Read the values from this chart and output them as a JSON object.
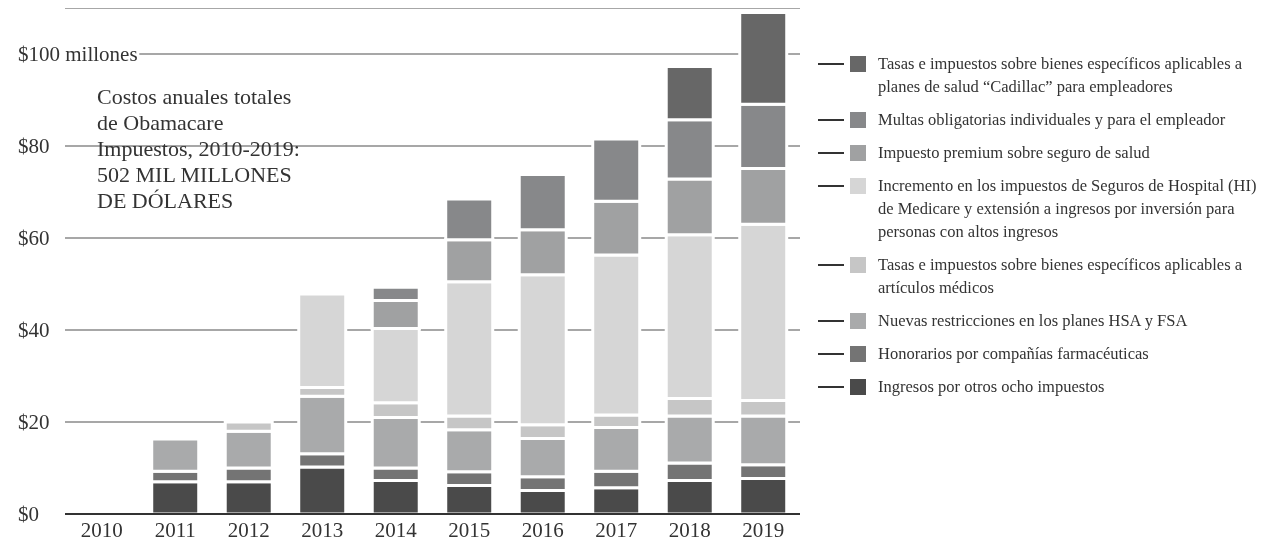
{
  "chart_data": {
    "type": "bar",
    "title": "Costos anuales totales\nde Obamacare\nImpuestos, 2010-2019:\n502 MIL MILLONES\nDE DÓLARES",
    "categories": [
      "2010",
      "2011",
      "2012",
      "2013",
      "2014",
      "2015",
      "2016",
      "2017",
      "2018",
      "2019"
    ],
    "stacked": true,
    "grid": "y",
    "legend": "right",
    "ylim": [
      0,
      110
    ],
    "yticks": [
      {
        "value": 0,
        "label": "$0"
      },
      {
        "value": 20,
        "label": "$20"
      },
      {
        "value": 40,
        "label": "$40"
      },
      {
        "value": 60,
        "label": "$60"
      },
      {
        "value": 80,
        "label": "$80"
      },
      {
        "value": 100,
        "label": "$100 millones"
      }
    ],
    "series": [
      {
        "name": "Ingresos por otros ocho impuestos",
        "color": "#4a4a4a",
        "values": [
          0,
          7.0,
          7.0,
          10.2,
          7.3,
          6.2,
          5.1,
          5.7,
          7.3,
          7.7
        ]
      },
      {
        "name": "Honorarios por compañías farmacéuticas",
        "color": "#747474",
        "values": [
          0,
          2.3,
          3.0,
          2.9,
          2.7,
          3.0,
          3.0,
          3.6,
          3.8,
          3.0
        ]
      },
      {
        "name": "Nuevas restricciones en los planes HSA y FSA",
        "color": "#a9aaab",
        "values": [
          0,
          7.0,
          8.0,
          12.5,
          11.0,
          9.1,
          8.3,
          9.5,
          10.2,
          10.6
        ]
      },
      {
        "name": "Tasas e impuestos sobre bienes específicos aplicables a artículos médicos",
        "color": "#c6c6c6",
        "values": [
          0,
          0,
          2.0,
          1.9,
          3.2,
          3.0,
          3.0,
          2.7,
          3.8,
          3.4
        ]
      },
      {
        "name": "Incremento en los impuestos de Seguros de Hospital (HI) de Medicare y extensión a ingresos por inversión para personas con altos ingresos",
        "color": "#d6d6d6",
        "values": [
          0,
          0,
          0,
          20.3,
          16.1,
          29.2,
          32.6,
          34.8,
          35.6,
          38.3
        ]
      },
      {
        "name": "Impuesto premium sobre seguro de salud",
        "color": "#a0a1a2",
        "values": [
          0,
          0,
          0,
          0,
          6.1,
          9.1,
          9.8,
          11.7,
          12.1,
          12.1
        ]
      },
      {
        "name": "Multas obligatorias individuales y para el empleador",
        "color": "#87888a",
        "values": [
          0,
          0,
          0,
          0,
          2.9,
          8.9,
          12.0,
          13.5,
          12.9,
          14.0
        ]
      },
      {
        "name": "Tasas e impuestos sobre bienes específicos aplicables a planes de salud “Cadillac” para empleadores",
        "color": "#676767",
        "values": [
          0,
          0,
          0,
          0,
          0,
          0,
          0,
          0,
          11.6,
          19.9
        ]
      }
    ]
  }
}
